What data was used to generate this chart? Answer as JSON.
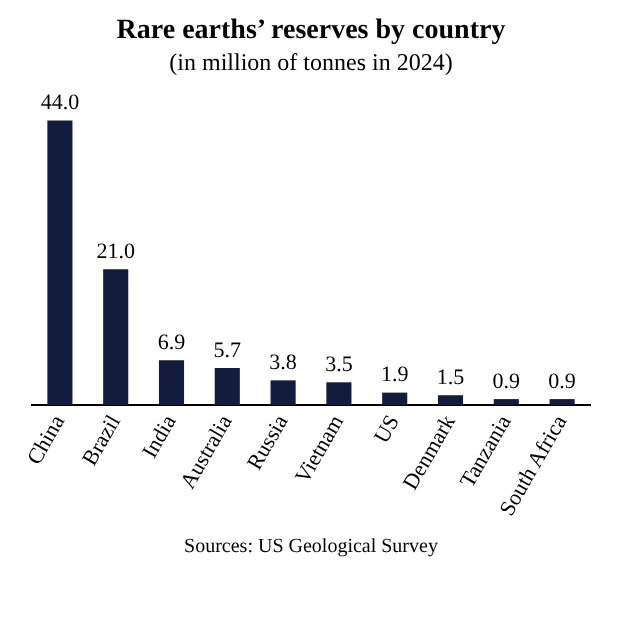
{
  "chart_data": {
    "type": "bar",
    "title": "Rare earths’ reserves by country",
    "subtitle": "(in million of tonnes in 2024)",
    "categories": [
      "China",
      "Brazil",
      "India",
      "Australia",
      "Russia",
      "Vietnam",
      "US",
      "Denmark",
      "Tanzania",
      "South Africa"
    ],
    "values": [
      44.0,
      21.0,
      6.9,
      5.7,
      3.8,
      3.5,
      1.9,
      1.5,
      0.9,
      0.9
    ],
    "value_labels": [
      "44.0",
      "21.0",
      "6.9",
      "5.7",
      "3.8",
      "3.5",
      "1.9",
      "1.5",
      "0.9",
      "0.9"
    ],
    "color": "#141c3e",
    "grid": false,
    "legend": false,
    "annotations": [
      "Sources: US Geological Survey"
    ]
  }
}
